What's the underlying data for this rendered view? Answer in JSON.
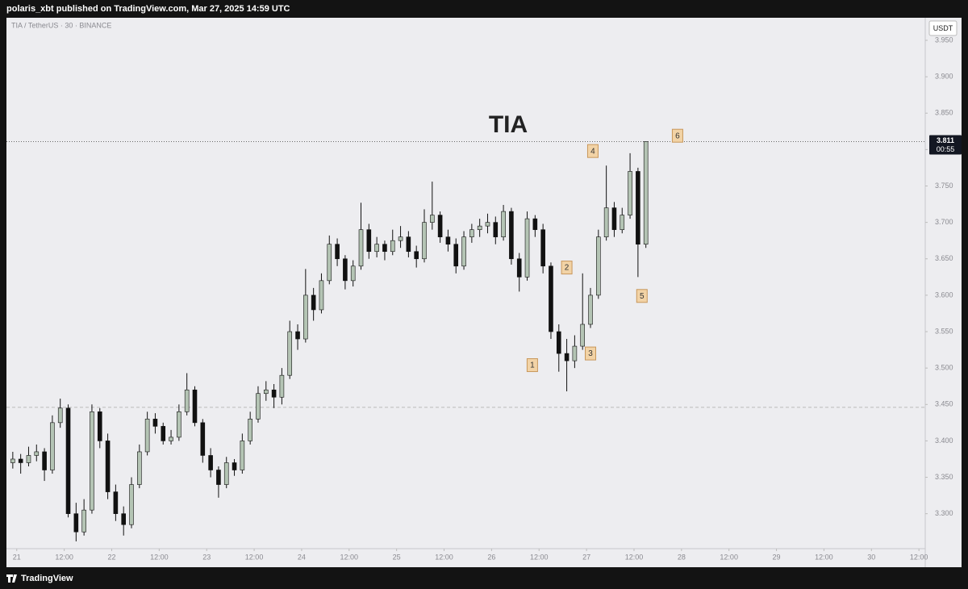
{
  "header": {
    "text": "polaris_xbt published on TradingView.com, Mar 27, 2025 14:59 UTC"
  },
  "footer": {
    "brand": "TradingView"
  },
  "chart_data": {
    "type": "candlestick",
    "title": "TIA",
    "symbol": "TIA / TetherUS · 30 · BINANCE",
    "currency": "USDT",
    "x": [
      -1,
      1,
      3,
      5,
      7,
      9,
      11,
      13,
      15,
      17,
      19,
      21,
      23,
      25,
      27,
      29,
      31,
      33,
      35,
      37,
      39,
      41,
      43,
      45,
      47,
      49,
      51,
      53,
      55,
      57,
      59,
      61,
      63,
      65,
      67,
      69,
      71,
      73,
      75,
      77,
      79,
      81,
      83,
      85,
      87,
      89,
      91,
      93,
      95,
      97,
      99,
      101,
      103,
      105,
      107,
      109,
      111,
      113,
      115,
      117,
      119,
      121,
      123,
      125,
      127,
      129,
      131,
      133,
      135,
      137,
      139,
      141,
      143,
      145,
      147,
      149,
      151,
      153,
      155,
      157,
      159
    ],
    "open": [
      3.37,
      3.375,
      3.37,
      3.38,
      3.385,
      3.36,
      3.425,
      3.445,
      3.3,
      3.275,
      3.305,
      3.44,
      3.4,
      3.33,
      3.3,
      3.285,
      3.34,
      3.385,
      3.43,
      3.42,
      3.4,
      3.405,
      3.44,
      3.47,
      3.425,
      3.38,
      3.36,
      3.34,
      3.37,
      3.36,
      3.4,
      3.43,
      3.465,
      3.47,
      3.46,
      3.49,
      3.55,
      3.54,
      3.6,
      3.58,
      3.62,
      3.67,
      3.65,
      3.62,
      3.64,
      3.69,
      3.66,
      3.67,
      3.66,
      3.675,
      3.68,
      3.66,
      3.65,
      3.7,
      3.71,
      3.68,
      3.67,
      3.64,
      3.68,
      3.69,
      3.695,
      3.7,
      3.68,
      3.715,
      3.65,
      3.625,
      3.705,
      3.69,
      3.64,
      3.55,
      3.52,
      3.51,
      3.53,
      3.56,
      3.6,
      3.68,
      3.72,
      3.69,
      3.71,
      3.77,
      3.67
    ],
    "high": [
      3.385,
      3.382,
      3.392,
      3.395,
      3.39,
      3.435,
      3.458,
      3.45,
      3.315,
      3.32,
      3.45,
      3.445,
      3.41,
      3.34,
      3.31,
      3.35,
      3.395,
      3.44,
      3.438,
      3.425,
      3.415,
      3.45,
      3.493,
      3.475,
      3.43,
      3.39,
      3.365,
      3.378,
      3.375,
      3.41,
      3.44,
      3.475,
      3.482,
      3.478,
      3.5,
      3.565,
      3.56,
      3.636,
      3.61,
      3.63,
      3.682,
      3.678,
      3.655,
      3.648,
      3.727,
      3.698,
      3.68,
      3.675,
      3.69,
      3.695,
      3.688,
      3.668,
      3.718,
      3.756,
      3.715,
      3.69,
      3.678,
      3.688,
      3.698,
      3.705,
      3.712,
      3.708,
      3.724,
      3.72,
      3.658,
      3.715,
      3.71,
      3.698,
      3.645,
      3.56,
      3.54,
      3.545,
      3.63,
      3.61,
      3.69,
      3.778,
      3.728,
      3.72,
      3.795,
      3.775,
      3.811
    ],
    "low": [
      3.362,
      3.355,
      3.365,
      3.372,
      3.345,
      3.355,
      3.418,
      3.295,
      3.262,
      3.27,
      3.3,
      3.39,
      3.32,
      3.29,
      3.27,
      3.28,
      3.335,
      3.38,
      3.41,
      3.395,
      3.395,
      3.4,
      3.435,
      3.42,
      3.37,
      3.35,
      3.322,
      3.335,
      3.352,
      3.355,
      3.395,
      3.425,
      3.455,
      3.445,
      3.45,
      3.485,
      3.525,
      3.535,
      3.565,
      3.575,
      3.615,
      3.64,
      3.608,
      3.612,
      3.635,
      3.65,
      3.652,
      3.648,
      3.655,
      3.665,
      3.652,
      3.638,
      3.645,
      3.69,
      3.672,
      3.66,
      3.63,
      3.635,
      3.672,
      3.68,
      3.685,
      3.67,
      3.675,
      3.642,
      3.605,
      3.62,
      3.68,
      3.63,
      3.54,
      3.495,
      3.468,
      3.5,
      3.525,
      3.555,
      3.595,
      3.675,
      3.68,
      3.685,
      3.705,
      3.625,
      3.665
    ],
    "close": [
      3.375,
      3.37,
      3.38,
      3.385,
      3.36,
      3.425,
      3.445,
      3.3,
      3.275,
      3.305,
      3.44,
      3.4,
      3.33,
      3.3,
      3.285,
      3.34,
      3.385,
      3.43,
      3.42,
      3.4,
      3.405,
      3.44,
      3.47,
      3.425,
      3.38,
      3.36,
      3.34,
      3.37,
      3.36,
      3.4,
      3.43,
      3.465,
      3.47,
      3.46,
      3.49,
      3.55,
      3.54,
      3.6,
      3.58,
      3.62,
      3.67,
      3.65,
      3.62,
      3.64,
      3.69,
      3.66,
      3.67,
      3.66,
      3.675,
      3.68,
      3.66,
      3.65,
      3.7,
      3.71,
      3.68,
      3.67,
      3.64,
      3.68,
      3.69,
      3.695,
      3.7,
      3.68,
      3.715,
      3.65,
      3.625,
      3.705,
      3.69,
      3.64,
      3.55,
      3.52,
      3.51,
      3.53,
      3.56,
      3.6,
      3.68,
      3.72,
      3.69,
      3.71,
      3.77,
      3.67,
      3.811
    ],
    "up_color": "#b4c4b4",
    "down_color": "#111111",
    "xlim": [
      -2.6,
      229.6
    ],
    "ylim": [
      3.252,
      3.981
    ],
    "xticks": [
      {
        "value": 0,
        "label": "21"
      },
      {
        "value": 12,
        "label": "12:00"
      },
      {
        "value": 24,
        "label": "22"
      },
      {
        "value": 36,
        "label": "12:00"
      },
      {
        "value": 48,
        "label": "23"
      },
      {
        "value": 60,
        "label": "12:00"
      },
      {
        "value": 72,
        "label": "24"
      },
      {
        "value": 84,
        "label": "12:00"
      },
      {
        "value": 96,
        "label": "25"
      },
      {
        "value": 108,
        "label": "12:00"
      },
      {
        "value": 120,
        "label": "26"
      },
      {
        "value": 132,
        "label": "12:00"
      },
      {
        "value": 144,
        "label": "27"
      },
      {
        "value": 156,
        "label": "12:00"
      },
      {
        "value": 168,
        "label": "28"
      },
      {
        "value": 180,
        "label": "12:00"
      },
      {
        "value": 192,
        "label": "29"
      },
      {
        "value": 204,
        "label": "12:00"
      },
      {
        "value": 216,
        "label": "30"
      },
      {
        "value": 228,
        "label": "12:00"
      }
    ],
    "yticks": [
      {
        "value": 3.3,
        "label": "3.300"
      },
      {
        "value": 3.35,
        "label": "3.350"
      },
      {
        "value": 3.4,
        "label": "3.400"
      },
      {
        "value": 3.45,
        "label": "3.450"
      },
      {
        "value": 3.5,
        "label": "3.500"
      },
      {
        "value": 3.55,
        "label": "3.550"
      },
      {
        "value": 3.6,
        "label": "3.600"
      },
      {
        "value": 3.65,
        "label": "3.650"
      },
      {
        "value": 3.7,
        "label": "3.700"
      },
      {
        "value": 3.75,
        "label": "3.750"
      },
      {
        "value": 3.8,
        "label": "3.800"
      },
      {
        "value": 3.85,
        "label": "3.850"
      },
      {
        "value": 3.9,
        "label": "3.900"
      },
      {
        "value": 3.95,
        "label": "3.950"
      }
    ],
    "last_price": 3.811,
    "countdown": "00:55",
    "hline": 3.446,
    "annotations": [
      {
        "text": "1",
        "x": 130.3,
        "y": 3.504
      },
      {
        "text": "2",
        "x": 139,
        "y": 3.638
      },
      {
        "text": "3",
        "x": 145,
        "y": 3.52
      },
      {
        "text": "4",
        "x": 145.6,
        "y": 3.798
      },
      {
        "text": "5",
        "x": 158,
        "y": 3.599
      },
      {
        "text": "6",
        "x": 167,
        "y": 3.819
      }
    ]
  }
}
